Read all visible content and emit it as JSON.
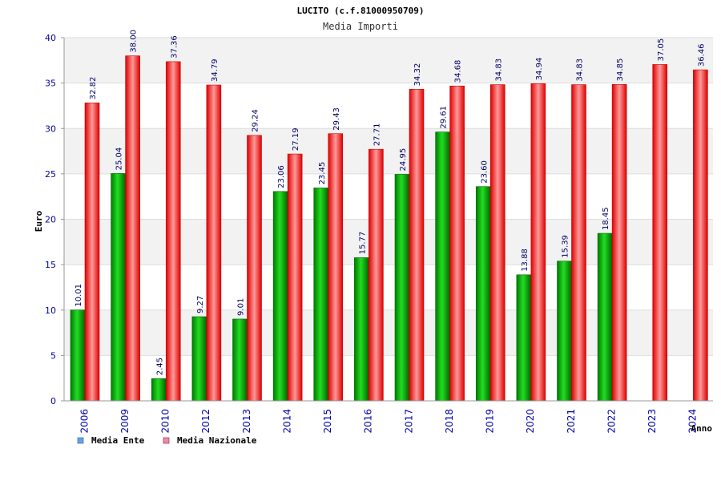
{
  "chart_data": {
    "type": "bar",
    "title": "LUCITO (c.f.81000950709)",
    "subtitle": "Media Importi",
    "xlabel": "Anno",
    "ylabel": "Euro",
    "ylim": [
      0,
      40
    ],
    "yticks": [
      0,
      5,
      10,
      15,
      20,
      25,
      30,
      35,
      40
    ],
    "grid": true,
    "legend_position": "bottom-left",
    "categories": [
      "2006",
      "2009",
      "2010",
      "2012",
      "2013",
      "2014",
      "2015",
      "2016",
      "2017",
      "2018",
      "2019",
      "2020",
      "2021",
      "2022",
      "2023",
      "2024"
    ],
    "series": [
      {
        "name": "Media Ente",
        "color": "#00aa00",
        "legend_color": "#66a3e8",
        "values": [
          10.01,
          25.04,
          2.45,
          9.27,
          9.01,
          23.06,
          23.45,
          15.77,
          24.95,
          29.61,
          23.6,
          13.88,
          15.39,
          18.45,
          null,
          null
        ],
        "labels": [
          "10.01",
          "25.04",
          "2.45",
          "9.27",
          "9.01",
          "23.06",
          "23.45",
          "15.77",
          "24.95",
          "29.61",
          "23.60",
          "13.88",
          "15.39",
          "18.45",
          null,
          null
        ]
      },
      {
        "name": "Media Nazionale",
        "color": "#ee0000",
        "legend_color": "#e88aa8",
        "values": [
          32.82,
          38.0,
          37.36,
          34.79,
          29.24,
          27.19,
          29.43,
          27.71,
          34.32,
          34.68,
          34.83,
          34.94,
          34.83,
          34.85,
          37.05,
          36.46
        ],
        "labels": [
          "32.82",
          "38.00",
          "37.36",
          "34.79",
          "29.24",
          "27.19",
          "29.43",
          "27.71",
          "34.32",
          "34.68",
          "34.83",
          "34.94",
          "34.83",
          "34.85",
          "37.05",
          "36.46"
        ]
      }
    ]
  }
}
